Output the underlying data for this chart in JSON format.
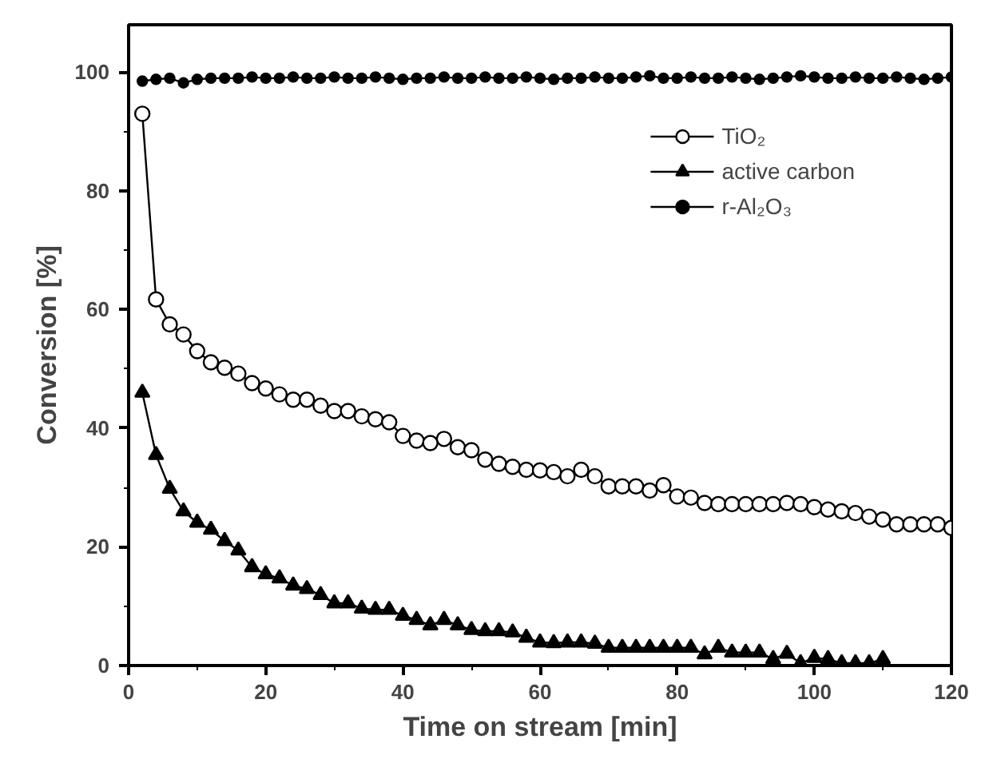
{
  "chart_data": {
    "type": "line",
    "xlabel": "Time on stream [min]",
    "ylabel": "Conversion [%]",
    "xlim": [
      0,
      120
    ],
    "ylim": [
      0,
      108
    ],
    "xticks": [
      0,
      20,
      40,
      60,
      80,
      100,
      120
    ],
    "yticks": [
      0,
      20,
      40,
      60,
      80,
      100
    ],
    "grid": false,
    "legend": "top right",
    "line_style": "solid",
    "series": [
      {
        "name": "TiO₂",
        "color": "#000000",
        "marker": "circle_open",
        "x": [
          2,
          4,
          6,
          8,
          10,
          12,
          14,
          16,
          18,
          20,
          22,
          24,
          26,
          28,
          30,
          32,
          34,
          36,
          38,
          40,
          42,
          44,
          46,
          48,
          50,
          52,
          54,
          56,
          58,
          60,
          62,
          64,
          66,
          68,
          70,
          72,
          74,
          76,
          78,
          80,
          82,
          84,
          86,
          88,
          90,
          92,
          94,
          96,
          98,
          100,
          102,
          104,
          106,
          108,
          110,
          112,
          114,
          116,
          118,
          120
        ],
        "values": [
          93,
          61.7,
          57.5,
          55.8,
          53,
          51.1,
          50.2,
          49.2,
          47.6,
          46.7,
          45.7,
          44.8,
          44.8,
          43.8,
          42.9,
          42.9,
          42,
          41.5,
          41,
          38.7,
          37.9,
          37.5,
          38.2,
          36.8,
          36.3,
          34.7,
          34,
          33.5,
          33,
          32.9,
          32.6,
          31.9,
          33,
          31.9,
          30.2,
          30.2,
          30.2,
          29.5,
          30.4,
          28.5,
          28.3,
          27.4,
          27.2,
          27.2,
          27.2,
          27.2,
          27.2,
          27.4,
          27.2,
          26.7,
          26.3,
          26,
          25.7,
          25.1,
          24.6,
          23.8,
          23.8,
          23.8,
          23.8,
          23.2
        ]
      },
      {
        "name": "active carbon",
        "color": "#000000",
        "marker": "triangle",
        "x": [
          2,
          4,
          6,
          8,
          10,
          12,
          14,
          16,
          18,
          20,
          22,
          24,
          26,
          28,
          30,
          32,
          34,
          36,
          38,
          40,
          42,
          44,
          46,
          48,
          50,
          52,
          54,
          56,
          58,
          60,
          62,
          64,
          66,
          68,
          70,
          72,
          74,
          76,
          78,
          80,
          82,
          84,
          86,
          88,
          90,
          92,
          94,
          96,
          98,
          100,
          102,
          104,
          106,
          108,
          110
        ],
        "values": [
          46,
          35.5,
          29.8,
          26,
          24.1,
          22.9,
          21,
          19.4,
          16.6,
          15.4,
          14.7,
          13.5,
          12.9,
          11.9,
          10.5,
          10.5,
          9.6,
          9.4,
          9.4,
          8.4,
          7.7,
          6.8,
          7.7,
          6.8,
          6,
          5.8,
          5.8,
          5.6,
          4.7,
          3.9,
          3.8,
          3.9,
          3.9,
          3.7,
          3,
          3,
          3,
          3,
          3,
          3,
          3,
          1.9,
          3,
          2.2,
          2.2,
          2.2,
          1.1,
          2,
          0.4,
          1.3,
          1.1,
          0.4,
          0.4,
          0.4,
          1.1
        ]
      },
      {
        "name": "r-Al₂O₃",
        "color": "#000000",
        "marker": "circle",
        "x": [
          2,
          4,
          6,
          8,
          10,
          12,
          14,
          16,
          18,
          20,
          22,
          24,
          26,
          28,
          30,
          32,
          34,
          36,
          38,
          40,
          42,
          44,
          46,
          48,
          50,
          52,
          54,
          56,
          58,
          60,
          62,
          64,
          66,
          68,
          70,
          72,
          74,
          76,
          78,
          80,
          82,
          84,
          86,
          88,
          90,
          92,
          94,
          96,
          98,
          100,
          102,
          104,
          106,
          108,
          110,
          112,
          114,
          116,
          118,
          120
        ],
        "values": [
          98.5,
          98.8,
          99,
          98.2,
          98.8,
          99,
          99,
          99,
          99.2,
          99,
          99,
          99.2,
          99,
          99,
          99.2,
          99,
          99,
          99.2,
          99,
          98.8,
          99,
          99,
          99.2,
          99,
          99,
          99.2,
          99,
          99,
          99.2,
          99,
          98.8,
          99,
          99,
          99.2,
          99,
          99,
          99.2,
          99.4,
          99,
          99,
          99.2,
          99,
          99,
          99.2,
          99,
          98.8,
          99,
          99.2,
          99.4,
          99.2,
          99,
          99,
          99.2,
          99,
          99,
          99.2,
          99,
          98.8,
          99,
          99.2
        ]
      }
    ]
  }
}
